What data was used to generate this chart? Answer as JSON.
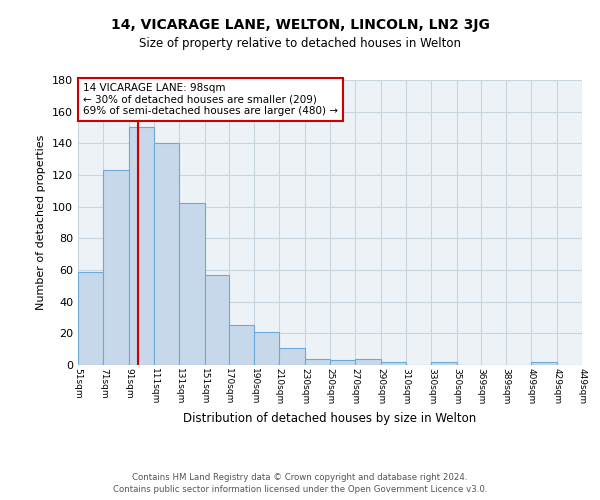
{
  "title": "14, VICARAGE LANE, WELTON, LINCOLN, LN2 3JG",
  "subtitle": "Size of property relative to detached houses in Welton",
  "xlabel": "Distribution of detached houses by size in Welton",
  "ylabel": "Number of detached properties",
  "bar_color": "#c8d8eb",
  "bar_edge_color": "#6aaad4",
  "grid_color": "#c8d4de",
  "background_color": "#edf2f7",
  "annotation_line_color": "#cc0000",
  "annotation_text": "14 VICARAGE LANE: 98sqm\n← 30% of detached houses are smaller (209)\n69% of semi-detached houses are larger (480) →",
  "footer_line1": "Contains HM Land Registry data © Crown copyright and database right 2024.",
  "footer_line2": "Contains public sector information licensed under the Open Government Licence v3.0.",
  "bins": [
    51,
    71,
    91,
    111,
    131,
    151,
    170,
    190,
    210,
    230,
    250,
    270,
    290,
    310,
    330,
    350,
    369,
    389,
    409,
    429,
    449
  ],
  "counts": [
    59,
    123,
    150,
    140,
    102,
    57,
    25,
    21,
    11,
    4,
    3,
    4,
    2,
    0,
    2,
    0,
    0,
    0,
    2,
    0
  ],
  "property_size": 98,
  "ylim": [
    0,
    180
  ],
  "yticks": [
    0,
    20,
    40,
    60,
    80,
    100,
    120,
    140,
    160,
    180
  ]
}
